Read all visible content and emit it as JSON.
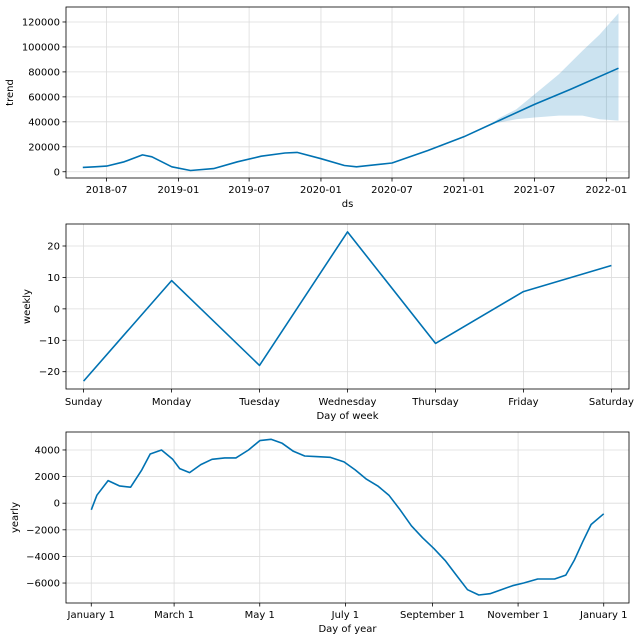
{
  "chart_data": [
    {
      "type": "area",
      "xlabel": "ds",
      "ylabel": "trend",
      "x_tick_labels": [
        "2018-07",
        "2019-01",
        "2019-07",
        "2020-01",
        "2020-07",
        "2021-01",
        "2021-07",
        "2022-01"
      ],
      "x_ticks": [
        "2018-07-01",
        "2019-01-01",
        "2019-07-01",
        "2020-01-01",
        "2020-07-01",
        "2021-01-01",
        "2021-07-01",
        "2022-01-01"
      ],
      "y_ticks": [
        0,
        20000,
        40000,
        60000,
        80000,
        100000,
        120000
      ],
      "y_tick_labels": [
        "0",
        "20000",
        "40000",
        "60000",
        "80000",
        "100000",
        "120000"
      ],
      "xlim": [
        "2018-03-19",
        "2022-02-28"
      ],
      "ylim": [
        -5000,
        132000
      ],
      "grid": true,
      "color": "#0072b2",
      "series": [
        {
          "x": [
            "2018-05-01",
            "2018-06-01",
            "2018-07-01",
            "2018-08-15",
            "2018-10-01",
            "2018-10-25",
            "2018-12-15",
            "2019-02-01",
            "2019-04-01",
            "2019-06-01",
            "2019-08-01",
            "2019-10-01",
            "2019-11-01",
            "2020-01-01",
            "2020-03-01",
            "2020-04-01",
            "2020-07-01",
            "2020-10-01",
            "2021-01-01",
            "2021-04-01",
            "2021-07-01",
            "2021-10-01",
            "2022-02-01"
          ],
          "y": [
            3500,
            4000,
            4500,
            8000,
            13500,
            12000,
            4000,
            1000,
            2500,
            8000,
            12500,
            15000,
            15500,
            10500,
            5000,
            4000,
            7000,
            17000,
            28000,
            41000,
            54000,
            66000,
            83000
          ]
        }
      ],
      "uncertainty": {
        "x": [
          "2021-03-15",
          "2021-04-01",
          "2021-05-15",
          "2021-07-01",
          "2021-09-01",
          "2021-11-01",
          "2021-12-15",
          "2022-02-01"
        ],
        "upper": [
          39000,
          43000,
          50000,
          62000,
          78000,
          97000,
          110000,
          127000
        ],
        "lower": [
          39000,
          39500,
          42000,
          43500,
          45000,
          45000,
          42000,
          41000
        ]
      }
    },
    {
      "type": "line",
      "xlabel": "Day of week",
      "ylabel": "weekly",
      "categories": [
        "Sunday",
        "Monday",
        "Tuesday",
        "Wednesday",
        "Thursday",
        "Friday",
        "Saturday"
      ],
      "values": [
        -23,
        9,
        -18,
        24.5,
        -11,
        5.5,
        13.8
      ],
      "y_ticks": [
        -20,
        -10,
        0,
        10,
        20
      ],
      "y_tick_labels": [
        "−20",
        "−10",
        "0",
        "10",
        "20"
      ],
      "ylim": [
        -25.5,
        27
      ],
      "grid": true,
      "color": "#0072b2"
    },
    {
      "type": "line",
      "xlabel": "Day of year",
      "ylabel": "yearly",
      "x_tick_labels": [
        "January 1",
        "March 1",
        "May 1",
        "July 1",
        "September 1",
        "November 1",
        "January 1"
      ],
      "x_ticks": [
        0,
        59,
        120,
        181,
        243,
        304,
        365
      ],
      "xlim": [
        -18,
        383
      ],
      "y_ticks": [
        -6000,
        -4000,
        -2000,
        0,
        2000,
        4000
      ],
      "y_tick_labels": [
        "−6000",
        "−4000",
        "−2000",
        "0",
        "2000",
        "4000"
      ],
      "ylim": [
        -7500,
        5350
      ],
      "grid": true,
      "color": "#0072b2",
      "series": [
        {
          "x": [
            0,
            4,
            12,
            20,
            28,
            36,
            42,
            50,
            58,
            63,
            70,
            78,
            86,
            95,
            103,
            112,
            120,
            128,
            136,
            144,
            152,
            160,
            170,
            180,
            188,
            196,
            204,
            212,
            220,
            228,
            236,
            244,
            252,
            260,
            268,
            276,
            284,
            292,
            300,
            308,
            318,
            330,
            338,
            344,
            350,
            356,
            365
          ],
          "y": [
            -500,
            600,
            1700,
            1300,
            1200,
            2500,
            3700,
            4000,
            3300,
            2600,
            2300,
            2900,
            3300,
            3400,
            3400,
            4000,
            4700,
            4800,
            4500,
            3900,
            3550,
            3500,
            3450,
            3100,
            2500,
            1800,
            1300,
            600,
            -500,
            -1700,
            -2600,
            -3400,
            -4300,
            -5400,
            -6500,
            -6900,
            -6800,
            -6500,
            -6200,
            -6000,
            -5700,
            -5700,
            -5400,
            -4300,
            -2900,
            -1600,
            -800
          ]
        }
      ]
    }
  ]
}
